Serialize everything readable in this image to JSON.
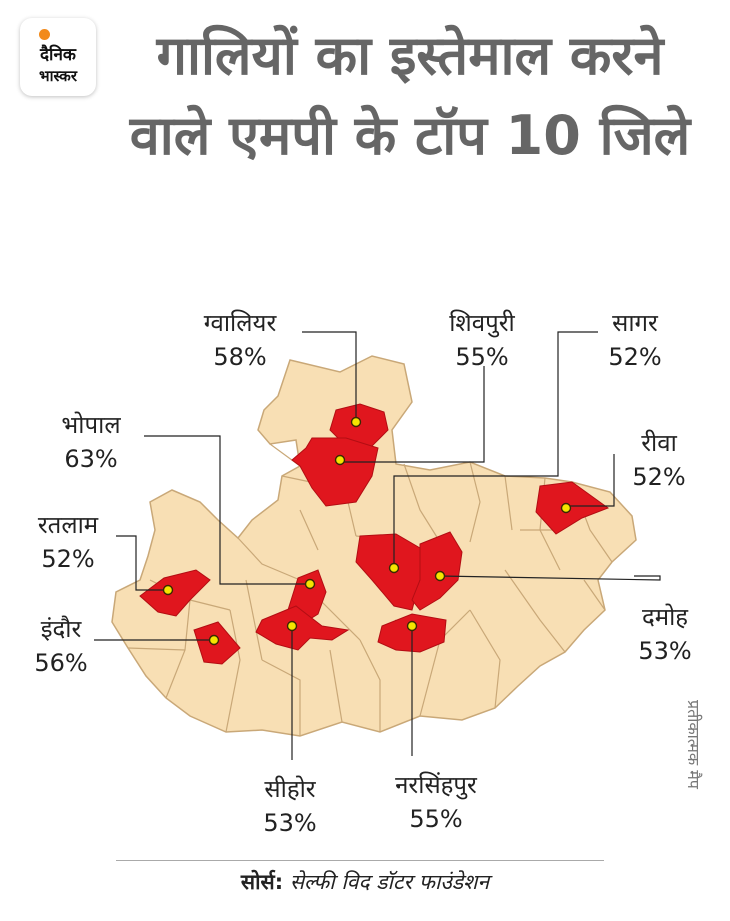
{
  "brand": {
    "line1": "दैनिक",
    "line2": "भास्कर",
    "dot_color": "#f28a1a"
  },
  "title": "गालियों का इस्तेमाल करने वाले एमपी के टॉप 10 जिले",
  "colors": {
    "state_fill": "#f8dfb4",
    "highlight_fill": "#e0161e",
    "border": "#c9a878",
    "marker": "#f5e400"
  },
  "districts": [
    {
      "name": "ग्वालियर",
      "value": "58%"
    },
    {
      "name": "शिवपुरी",
      "value": "55%"
    },
    {
      "name": "सागर",
      "value": "52%"
    },
    {
      "name": "भोपाल",
      "value": "63%"
    },
    {
      "name": "रीवा",
      "value": "52%"
    },
    {
      "name": "रतलाम",
      "value": "52%"
    },
    {
      "name": "इंदौर",
      "value": "56%"
    },
    {
      "name": "दमोह",
      "value": "53%"
    },
    {
      "name": "सीहोर",
      "value": "53%"
    },
    {
      "name": "नरसिंहपुर",
      "value": "55%"
    }
  ],
  "watermark": "प्रतीकात्मक मैप",
  "source": {
    "label": "सोर्स:",
    "text": "सेल्फी विद डॉटर फाउंडेशन"
  }
}
